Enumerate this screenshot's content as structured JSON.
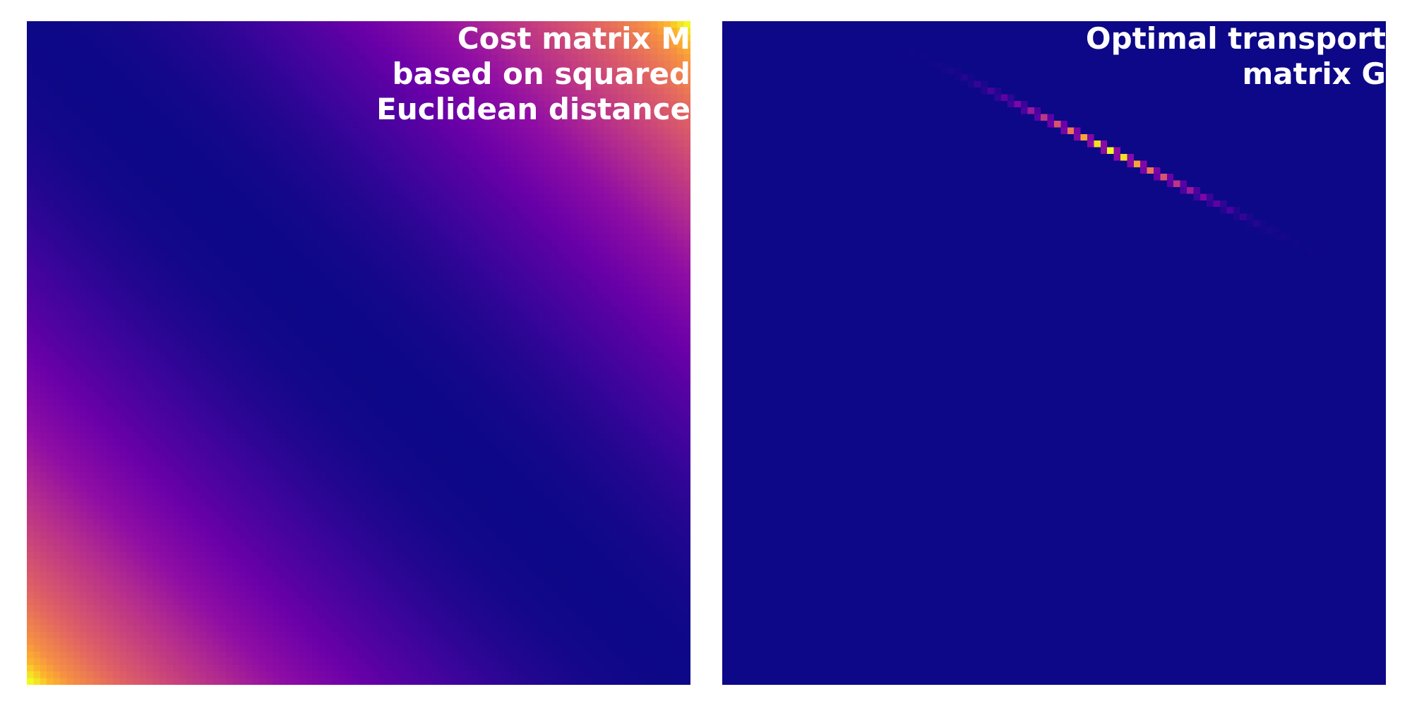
{
  "chart_data": [
    {
      "type": "heatmap",
      "title_lines": [
        "Cost matrix M",
        "based on squared",
        "Euclidean distance"
      ],
      "rows": 100,
      "cols": 100,
      "colormap": "plasma",
      "axes_visible": false,
      "values_description": "M[i][j] = (x_i - y_j)^2, minimum along the diagonal from upper-left to lower-right, maximum at upper-right and lower-left corners"
    },
    {
      "type": "heatmap",
      "title_lines": [
        "Optimal transport",
        "matrix G"
      ],
      "rows": 100,
      "cols": 100,
      "colormap": "plasma",
      "axes_visible": false,
      "nonzero_band": {
        "row_start": 4,
        "row_end": 36,
        "col_start": 28,
        "col_end": 92,
        "peak_row": 19,
        "peak_col": 58
      }
    }
  ],
  "colors": {
    "background": "#ffffff",
    "title_text": "#ffffff",
    "plasma_low": "#0d0887",
    "plasma_mid": "#cc4778",
    "plasma_high": "#f0f921"
  }
}
